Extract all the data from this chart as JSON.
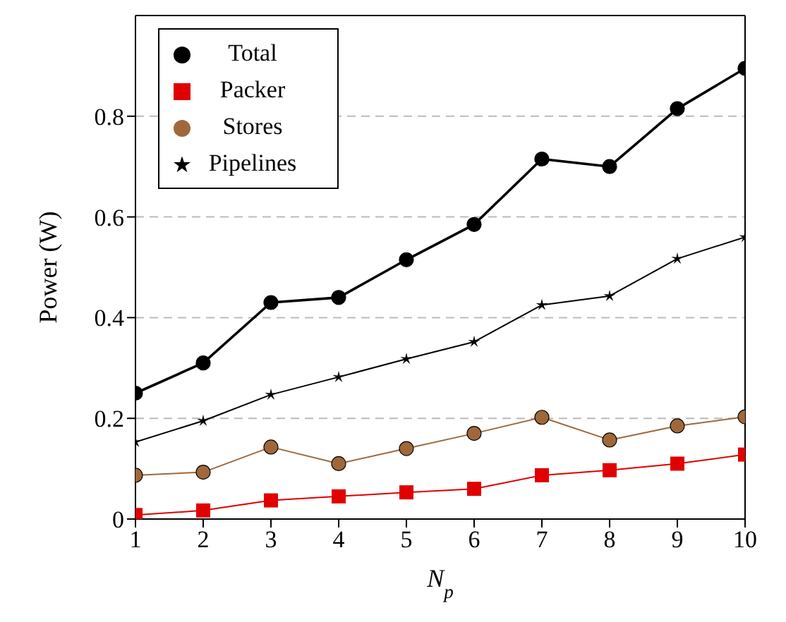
{
  "chart_data": {
    "type": "line",
    "xlabel": "N$_{p}$",
    "ylabel": "Power (W)",
    "x": [
      1,
      2,
      3,
      4,
      5,
      6,
      7,
      8,
      9,
      10
    ],
    "xlim": [
      1,
      10
    ],
    "xticks": [
      1,
      2,
      3,
      4,
      5,
      6,
      7,
      8,
      9,
      10
    ],
    "ylim": [
      0,
      1
    ],
    "yticks": [
      0,
      0.2,
      0.4,
      0.6,
      0.8
    ],
    "grid": "y",
    "legend": "top left",
    "line_style": "solid",
    "series": [
      {
        "name": "Total",
        "color": "#000000",
        "marker": "circle",
        "values": [
          0.25,
          0.31,
          0.43,
          0.44,
          0.515,
          0.585,
          0.715,
          0.7,
          0.815,
          0.895
        ]
      },
      {
        "name": "Packer",
        "color": "#e00000",
        "marker": "square",
        "values": [
          0.008,
          0.017,
          0.037,
          0.045,
          0.053,
          0.06,
          0.087,
          0.097,
          0.11,
          0.128
        ]
      },
      {
        "name": "Stores",
        "color": "#a0683a",
        "marker": "circle",
        "values": [
          0.087,
          0.093,
          0.143,
          0.11,
          0.14,
          0.17,
          0.202,
          0.157,
          0.185,
          0.203
        ]
      },
      {
        "name": "Pipelines",
        "color": "#000000",
        "marker": "star",
        "values": [
          0.153,
          0.195,
          0.247,
          0.282,
          0.318,
          0.352,
          0.425,
          0.443,
          0.517,
          0.56
        ]
      }
    ]
  }
}
